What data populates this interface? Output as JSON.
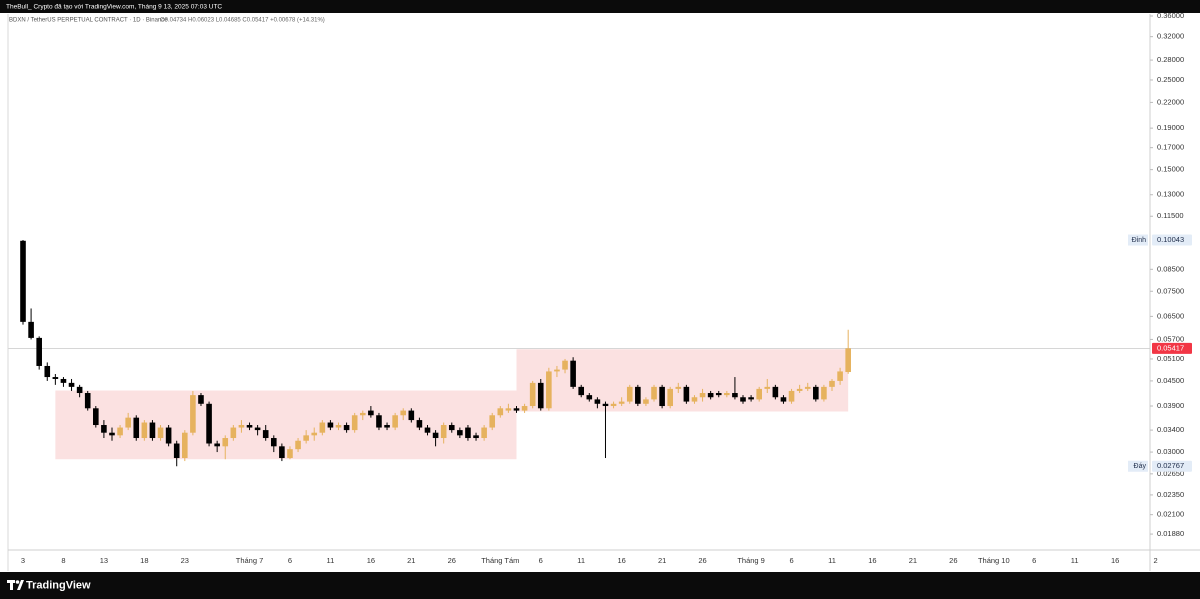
{
  "chart_data": {
    "type": "candlestick",
    "creator_line": "TheBull_ Crypto đã tạo với TradingView.com, Tháng 9 13, 2025 07:03 UTC",
    "symbol_line": "BDXN / TetherUS PERPETUAL CONTRACT · 1D · Binance",
    "ohlc_line": "O0.04734 H0.06023 L0.04685 C0.05417 +0.00678 (+14.31%)",
    "brand": "TradingView",
    "categories": [
      "3",
      null,
      null,
      null,
      null,
      "8",
      null,
      null,
      null,
      null,
      "13",
      null,
      null,
      null,
      null,
      "18",
      null,
      null,
      null,
      null,
      "23",
      null,
      null,
      null,
      null,
      null,
      null,
      null,
      "Tháng 7",
      null,
      null,
      null,
      null,
      "6",
      null,
      null,
      null,
      null,
      "11",
      null,
      null,
      null,
      null,
      "16",
      null,
      null,
      null,
      null,
      "21",
      null,
      null,
      null,
      null,
      "26",
      null,
      null,
      null,
      null,
      null,
      "Tháng Tám",
      null,
      null,
      null,
      null,
      "6",
      null,
      null,
      null,
      null,
      "11",
      null,
      null,
      null,
      null,
      "16",
      null,
      null,
      null,
      null,
      "21",
      null,
      null,
      null,
      null,
      "26",
      null,
      null,
      null,
      null,
      null,
      "Tháng 9",
      null,
      null,
      null,
      null,
      "6",
      null,
      null,
      null,
      null,
      "11",
      null,
      null,
      null,
      null,
      "16",
      null,
      null,
      null,
      null,
      "21",
      null,
      null,
      null,
      null,
      "26",
      null,
      null,
      null,
      null,
      "Tháng 10",
      null,
      null,
      null,
      null,
      "6",
      null,
      null,
      null,
      null,
      "11",
      null,
      null,
      null,
      null,
      "16",
      null,
      null,
      null,
      null,
      "2"
    ],
    "open": [
      0.1,
      0.063,
      0.0575,
      0.049,
      0.046,
      0.0455,
      0.0445,
      0.0435,
      0.042,
      0.0385,
      0.035,
      0.0335,
      0.033,
      0.0345,
      0.0365,
      0.0325,
      0.0355,
      0.0325,
      0.0345,
      0.0315,
      0.029,
      0.0335,
      0.0415,
      0.0395,
      0.0315,
      0.031,
      0.0325,
      0.0345,
      0.035,
      0.0345,
      0.034,
      0.0325,
      0.031,
      0.029,
      0.0305,
      0.032,
      0.033,
      0.0335,
      0.0355,
      0.0345,
      0.035,
      0.034,
      0.037,
      0.038,
      0.037,
      0.035,
      0.0345,
      0.037,
      0.038,
      0.036,
      0.0345,
      0.0335,
      0.0325,
      0.035,
      0.034,
      0.0345,
      0.033,
      0.0325,
      0.0345,
      0.037,
      0.038,
      0.0385,
      0.038,
      0.039,
      0.0445,
      0.0385,
      0.0475,
      0.048,
      0.0505,
      0.0435,
      0.0415,
      0.0405,
      0.0395,
      0.039,
      0.0395,
      0.04,
      0.0435,
      0.0395,
      0.0405,
      0.0435,
      0.039,
      0.043,
      0.0435,
      0.04,
      0.041,
      0.042,
      0.042,
      0.0415,
      0.042,
      0.041,
      0.041,
      0.0405,
      0.043,
      0.0435,
      0.041,
      0.04,
      0.0425,
      0.043,
      0.0435,
      0.0405,
      0.0435,
      0.045,
      0.04734,
      null,
      null,
      null,
      null,
      null,
      null,
      null,
      null,
      null,
      null,
      null,
      null,
      null,
      null,
      null,
      null,
      null,
      null,
      null,
      null,
      null,
      null,
      null,
      null,
      null,
      null,
      null,
      null,
      null,
      null,
      null,
      null,
      null,
      null,
      null,
      null,
      null,
      null
    ],
    "high": [
      0.10043,
      0.068,
      0.058,
      0.05,
      0.0468,
      0.046,
      0.0455,
      0.044,
      0.0425,
      0.039,
      0.036,
      0.0345,
      0.035,
      0.0375,
      0.037,
      0.036,
      0.036,
      0.035,
      0.035,
      0.032,
      0.034,
      0.0425,
      0.042,
      0.04,
      0.032,
      0.033,
      0.035,
      0.036,
      0.0355,
      0.035,
      0.035,
      0.033,
      0.0315,
      0.031,
      0.0325,
      0.034,
      0.0345,
      0.036,
      0.036,
      0.0355,
      0.0355,
      0.0375,
      0.038,
      0.039,
      0.0375,
      0.0355,
      0.0375,
      0.0385,
      0.0385,
      0.0365,
      0.035,
      0.034,
      0.0355,
      0.0355,
      0.0345,
      0.035,
      0.0335,
      0.035,
      0.0375,
      0.039,
      0.0395,
      0.039,
      0.0395,
      0.045,
      0.0455,
      0.0485,
      0.049,
      0.051,
      0.0515,
      0.044,
      0.042,
      0.041,
      0.04,
      0.04,
      0.041,
      0.044,
      0.044,
      0.041,
      0.044,
      0.044,
      0.0435,
      0.0445,
      0.044,
      0.0415,
      0.043,
      0.0425,
      0.0425,
      0.0425,
      0.046,
      0.0415,
      0.0415,
      0.0435,
      0.0455,
      0.044,
      0.0415,
      0.043,
      0.044,
      0.0445,
      0.044,
      0.044,
      0.0455,
      0.0485,
      0.06023,
      null,
      null,
      null,
      null,
      null,
      null,
      null,
      null,
      null,
      null,
      null,
      null,
      null,
      null,
      null,
      null,
      null,
      null,
      null,
      null,
      null,
      null,
      null,
      null,
      null,
      null,
      null,
      null,
      null,
      null,
      null,
      null,
      null,
      null,
      null,
      null,
      null,
      null
    ],
    "low": [
      0.062,
      0.057,
      0.048,
      0.045,
      0.044,
      0.0435,
      0.0425,
      0.041,
      0.038,
      0.0345,
      0.0325,
      0.032,
      0.0325,
      0.034,
      0.032,
      0.032,
      0.032,
      0.032,
      0.031,
      0.02767,
      0.0285,
      0.033,
      0.039,
      0.031,
      0.03,
      0.0288,
      0.032,
      0.0335,
      0.034,
      0.033,
      0.032,
      0.03,
      0.0285,
      0.0288,
      0.03,
      0.0315,
      0.032,
      0.033,
      0.034,
      0.034,
      0.0335,
      0.0335,
      0.036,
      0.0365,
      0.034,
      0.034,
      0.034,
      0.036,
      0.0355,
      0.034,
      0.033,
      0.031,
      0.0315,
      0.0335,
      0.0325,
      0.032,
      0.032,
      0.032,
      0.034,
      0.0365,
      0.0375,
      0.0375,
      0.0375,
      0.0385,
      0.038,
      0.038,
      0.046,
      0.047,
      0.043,
      0.041,
      0.04,
      0.0385,
      0.029,
      0.0385,
      0.039,
      0.0395,
      0.039,
      0.039,
      0.04,
      0.0385,
      0.0385,
      0.042,
      0.0395,
      0.0395,
      0.04,
      0.0405,
      0.041,
      0.041,
      0.0405,
      0.0395,
      0.04,
      0.04,
      0.042,
      0.0405,
      0.0395,
      0.0395,
      0.042,
      0.0425,
      0.04,
      0.04,
      0.0425,
      0.044,
      0.04685,
      null,
      null,
      null,
      null,
      null,
      null,
      null,
      null,
      null,
      null,
      null,
      null,
      null,
      null,
      null,
      null,
      null,
      null,
      null,
      null,
      null,
      null,
      null,
      null,
      null,
      null,
      null,
      null,
      null,
      null,
      null,
      null,
      null,
      null,
      null,
      null,
      null,
      null
    ],
    "close": [
      0.063,
      0.0575,
      0.049,
      0.046,
      0.0455,
      0.0445,
      0.0435,
      0.042,
      0.0385,
      0.035,
      0.0335,
      0.033,
      0.0345,
      0.0365,
      0.0325,
      0.0355,
      0.0325,
      0.0345,
      0.0315,
      0.029,
      0.0335,
      0.0415,
      0.0395,
      0.0315,
      0.031,
      0.0325,
      0.0345,
      0.035,
      0.0345,
      0.034,
      0.0325,
      0.031,
      0.029,
      0.0305,
      0.032,
      0.033,
      0.0335,
      0.0355,
      0.0345,
      0.035,
      0.034,
      0.037,
      0.0375,
      0.037,
      0.0345,
      0.0345,
      0.037,
      0.038,
      0.036,
      0.0345,
      0.0335,
      0.0325,
      0.035,
      0.034,
      0.033,
      0.0325,
      0.0325,
      0.0345,
      0.037,
      0.0385,
      0.0385,
      0.038,
      0.039,
      0.0445,
      0.0385,
      0.0475,
      0.048,
      0.0505,
      0.0435,
      0.0415,
      0.0405,
      0.0395,
      0.039,
      0.0395,
      0.04,
      0.0435,
      0.0395,
      0.0405,
      0.0435,
      0.039,
      0.043,
      0.0435,
      0.04,
      0.041,
      0.042,
      0.041,
      0.0415,
      0.042,
      0.041,
      0.04,
      0.0405,
      0.043,
      0.0435,
      0.041,
      0.04,
      0.0425,
      0.043,
      0.0435,
      0.0405,
      0.0435,
      0.045,
      0.0475,
      0.05417,
      null,
      null,
      null,
      null,
      null,
      null,
      null,
      null,
      null,
      null,
      null,
      null,
      null,
      null,
      null,
      null,
      null,
      null,
      null,
      null,
      null,
      null,
      null,
      null,
      null,
      null,
      null,
      null,
      null,
      null,
      null,
      null,
      null,
      null,
      null,
      null,
      null,
      null
    ],
    "up_color": "#e6b25e",
    "down_color": "#000000",
    "zone_color": "#fbe1e1",
    "zones": [
      {
        "start": 4,
        "end": 61,
        "top": 0.0426,
        "bottom": 0.0288
      },
      {
        "start": 61,
        "end": 102,
        "top": 0.0539,
        "bottom": 0.0378
      }
    ],
    "log_scale": true,
    "grid": false,
    "ylim": [
      0.01717,
      0.3641
    ],
    "yticks": [
      {
        "value": 0.36,
        "label": "0.36000"
      },
      {
        "value": 0.32,
        "label": "0.32000"
      },
      {
        "value": 0.28,
        "label": "0.28000"
      },
      {
        "value": 0.25,
        "label": "0.25000"
      },
      {
        "value": 0.22,
        "label": "0.22000"
      },
      {
        "value": 0.19,
        "label": "0.19000"
      },
      {
        "value": 0.17,
        "label": "0.17000"
      },
      {
        "value": 0.15,
        "label": "0.15000"
      },
      {
        "value": 0.13,
        "label": "0.13000"
      },
      {
        "value": 0.115,
        "label": "0.11500"
      },
      {
        "value": 0.085,
        "label": "0.08500"
      },
      {
        "value": 0.075,
        "label": "0.07500"
      },
      {
        "value": 0.065,
        "label": "0.06500"
      },
      {
        "value": 0.057,
        "label": "0.05700"
      },
      {
        "value": 0.051,
        "label": "0.05100"
      },
      {
        "value": 0.045,
        "label": "0.04500"
      },
      {
        "value": 0.039,
        "label": "0.03900"
      },
      {
        "value": 0.034,
        "label": "0.03400"
      },
      {
        "value": 0.03,
        "label": "0.03000"
      },
      {
        "value": 0.0265,
        "label": "0.02650"
      },
      {
        "value": 0.0235,
        "label": "0.02350"
      },
      {
        "value": 0.021,
        "label": "0.02100"
      },
      {
        "value": 0.0188,
        "label": "0.01880"
      }
    ],
    "high_marker": {
      "label": "Đỉnh",
      "value": 0.10043
    },
    "low_marker": {
      "label": "Đáy",
      "value": 0.02767
    },
    "last_price": 0.05417,
    "last_price_color": "#f23645"
  }
}
